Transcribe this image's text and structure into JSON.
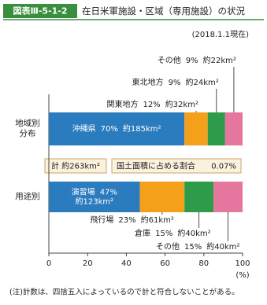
{
  "header": {
    "label": "図表Ⅲ-5-1-2",
    "title": "在日米軍施設・区域（専用施設）の状況"
  },
  "chart_data": {
    "type": "stacked-bar-100",
    "date": "(2018.1.1現在)",
    "bars": [
      {
        "name": "地域別\n分布",
        "categories": [
          "沖縄県",
          "関東地方",
          "東北地方",
          "その他"
        ],
        "values": [
          70,
          12,
          9,
          9
        ],
        "value_labels": [
          "70%",
          "12%",
          "9%",
          "9%"
        ],
        "areas": [
          "約185km²",
          "約32km²",
          "約24km²",
          "約22km²"
        ]
      },
      {
        "name": "用途別",
        "categories": [
          "演習場",
          "飛行場",
          "倉庫",
          "その他"
        ],
        "values": [
          47,
          23,
          15,
          15
        ],
        "value_labels": [
          "47%",
          "23%",
          "15%",
          "15%"
        ],
        "areas": [
          "約123km²",
          "約61km²",
          "約40km²",
          "約40km²"
        ]
      }
    ],
    "colors": [
      "#2b7bbf",
      "#f5a01a",
      "#2e9b4a",
      "#e5779f"
    ],
    "total": "計 約263km²",
    "share_label": "国土面積に占める割合",
    "share": "0.07%",
    "xlim": [
      0,
      100
    ],
    "xticks": [
      0,
      20,
      40,
      60,
      80,
      100
    ],
    "xunit": "(%)",
    "note": "(注)計数は、四捨五入によっているので計と符合しないことがある。"
  }
}
